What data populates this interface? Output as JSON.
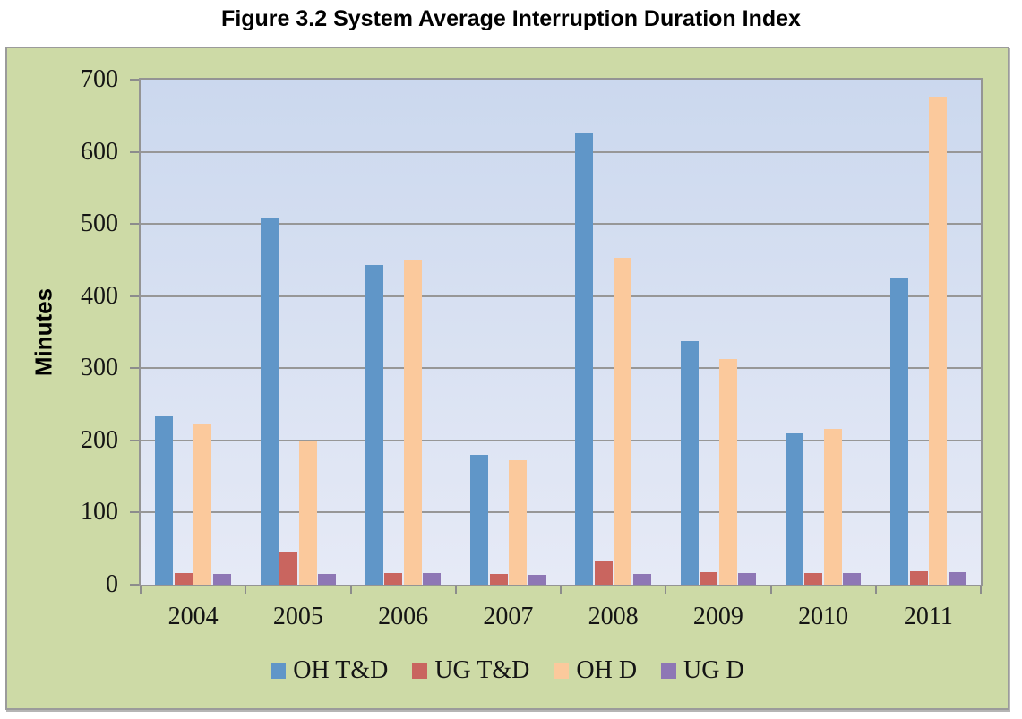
{
  "figure_title": "Figure 3.2 System Average Interruption Duration Index",
  "chart_data": {
    "type": "bar",
    "title": "Figure 3.2 System Average Interruption Duration Index",
    "xlabel": "",
    "ylabel": "Minutes",
    "ylim": [
      0,
      700
    ],
    "ytick_step": 100,
    "grid": true,
    "legend_position": "bottom",
    "categories": [
      "2004",
      "2005",
      "2006",
      "2007",
      "2008",
      "2009",
      "2010",
      "2011"
    ],
    "series": [
      {
        "name": "OH T&D",
        "color": "#6096C8",
        "values": [
          233,
          508,
          443,
          180,
          627,
          337,
          210,
          424
        ]
      },
      {
        "name": "UG T&D",
        "color": "#C9655F",
        "values": [
          16,
          45,
          16,
          15,
          33,
          17,
          16,
          19
        ]
      },
      {
        "name": "OH D",
        "color": "#FBC99C",
        "values": [
          224,
          199,
          450,
          173,
          453,
          313,
          216,
          677
        ]
      },
      {
        "name": "UG D",
        "color": "#8E77B5",
        "values": [
          15,
          15,
          16,
          14,
          15,
          16,
          16,
          17
        ]
      }
    ]
  },
  "colors": {
    "chart_background": "#CDDAA6",
    "plot_background_top": "#CBD8EE",
    "plot_background_bottom": "#E6EAF6",
    "gridline": "#979797",
    "axis": "#8C8C8C",
    "box_border": "#9B9B9B",
    "title_text": "#000000"
  }
}
